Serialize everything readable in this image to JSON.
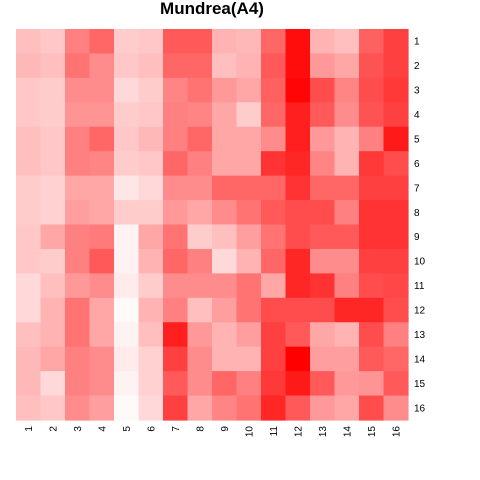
{
  "chart_data": {
    "type": "heatmap",
    "title": "Mundrea(A4)",
    "xlabel": "",
    "ylabel": "",
    "x_categories": [
      "1",
      "2",
      "3",
      "4",
      "5",
      "6",
      "7",
      "8",
      "9",
      "10",
      "11",
      "12",
      "13",
      "14",
      "15",
      "16"
    ],
    "y_categories": [
      "1",
      "2",
      "3",
      "4",
      "5",
      "6",
      "7",
      "8",
      "9",
      "10",
      "11",
      "12",
      "13",
      "14",
      "15",
      "16"
    ],
    "color_low": "#ffffff",
    "color_high": "#ff0000",
    "value_range": [
      0,
      1
    ],
    "values": [
      [
        0.25,
        0.22,
        0.5,
        0.6,
        0.2,
        0.22,
        0.65,
        0.65,
        0.3,
        0.28,
        0.6,
        0.95,
        0.3,
        0.25,
        0.62,
        0.75
      ],
      [
        0.28,
        0.25,
        0.55,
        0.45,
        0.22,
        0.25,
        0.6,
        0.6,
        0.25,
        0.3,
        0.65,
        0.95,
        0.4,
        0.35,
        0.68,
        0.75
      ],
      [
        0.22,
        0.2,
        0.45,
        0.45,
        0.15,
        0.2,
        0.48,
        0.55,
        0.4,
        0.35,
        0.62,
        0.98,
        0.7,
        0.48,
        0.7,
        0.78
      ],
      [
        0.22,
        0.2,
        0.42,
        0.42,
        0.2,
        0.22,
        0.5,
        0.48,
        0.35,
        0.2,
        0.6,
        0.88,
        0.65,
        0.45,
        0.68,
        0.75
      ],
      [
        0.25,
        0.22,
        0.5,
        0.6,
        0.22,
        0.28,
        0.5,
        0.6,
        0.35,
        0.35,
        0.45,
        0.88,
        0.4,
        0.3,
        0.5,
        0.9
      ],
      [
        0.25,
        0.22,
        0.5,
        0.48,
        0.2,
        0.22,
        0.6,
        0.5,
        0.35,
        0.35,
        0.8,
        0.85,
        0.48,
        0.3,
        0.78,
        0.7
      ],
      [
        0.2,
        0.18,
        0.35,
        0.35,
        0.1,
        0.15,
        0.45,
        0.45,
        0.6,
        0.6,
        0.6,
        0.8,
        0.6,
        0.6,
        0.75,
        0.75
      ],
      [
        0.2,
        0.18,
        0.38,
        0.35,
        0.2,
        0.2,
        0.4,
        0.35,
        0.45,
        0.55,
        0.65,
        0.7,
        0.7,
        0.5,
        0.8,
        0.8
      ],
      [
        0.22,
        0.35,
        0.5,
        0.52,
        0.05,
        0.35,
        0.55,
        0.2,
        0.25,
        0.38,
        0.55,
        0.7,
        0.65,
        0.65,
        0.8,
        0.8
      ],
      [
        0.22,
        0.2,
        0.5,
        0.65,
        0.05,
        0.3,
        0.6,
        0.5,
        0.15,
        0.3,
        0.6,
        0.85,
        0.45,
        0.45,
        0.75,
        0.75
      ],
      [
        0.15,
        0.25,
        0.4,
        0.45,
        0.08,
        0.2,
        0.45,
        0.45,
        0.45,
        0.55,
        0.35,
        0.85,
        0.8,
        0.5,
        0.7,
        0.72
      ],
      [
        0.15,
        0.3,
        0.55,
        0.35,
        0.02,
        0.3,
        0.5,
        0.25,
        0.38,
        0.55,
        0.7,
        0.7,
        0.7,
        0.85,
        0.85,
        0.7
      ],
      [
        0.25,
        0.3,
        0.55,
        0.35,
        0.05,
        0.25,
        0.88,
        0.4,
        0.3,
        0.38,
        0.75,
        0.65,
        0.35,
        0.3,
        0.7,
        0.5
      ],
      [
        0.28,
        0.35,
        0.5,
        0.45,
        0.08,
        0.18,
        0.75,
        0.45,
        0.3,
        0.3,
        0.75,
        1.0,
        0.38,
        0.38,
        0.65,
        0.6
      ],
      [
        0.28,
        0.15,
        0.5,
        0.45,
        0.05,
        0.18,
        0.65,
        0.45,
        0.6,
        0.5,
        0.78,
        0.9,
        0.65,
        0.4,
        0.42,
        0.65
      ],
      [
        0.25,
        0.22,
        0.45,
        0.38,
        0.02,
        0.15,
        0.75,
        0.35,
        0.48,
        0.55,
        0.85,
        0.65,
        0.4,
        0.35,
        0.7,
        0.45
      ]
    ]
  }
}
